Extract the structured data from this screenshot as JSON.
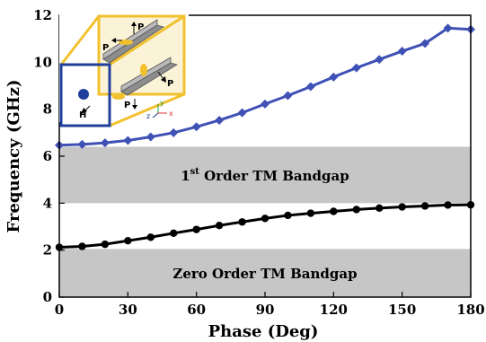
{
  "chart_data": {
    "type": "line",
    "title": "",
    "xlabel": "Phase (Deg)",
    "ylabel": "Frequency (GHz)",
    "xlim": [
      0,
      180
    ],
    "ylim": [
      0,
      12
    ],
    "xticks": [
      "0",
      "30",
      "60",
      "90",
      "120",
      "150",
      "180"
    ],
    "yticks": [
      "0",
      "2",
      "4",
      "6",
      "8",
      "10",
      "12"
    ],
    "grid": false,
    "legend": "none",
    "x": [
      0,
      10,
      20,
      30,
      40,
      50,
      60,
      70,
      80,
      90,
      100,
      110,
      120,
      130,
      140,
      150,
      160,
      170,
      180
    ],
    "series": [
      {
        "color": "#3f51b5",
        "values": [
          6.47,
          6.5,
          6.57,
          6.67,
          6.82,
          7.0,
          7.25,
          7.53,
          7.85,
          8.22,
          8.58,
          8.96,
          9.37,
          9.76,
          10.12,
          10.47,
          10.8,
          11.45,
          11.4
        ]
      },
      {
        "color": "#000000",
        "values": [
          2.12,
          2.16,
          2.25,
          2.4,
          2.55,
          2.72,
          2.88,
          3.05,
          3.2,
          3.35,
          3.48,
          3.57,
          3.65,
          3.73,
          3.79,
          3.84,
          3.88,
          3.92,
          3.93
        ]
      }
    ],
    "bands": [
      {
        "y0": 4.0,
        "y1": 6.4,
        "label_main": "1",
        "label_sup": "st",
        "label_rest": " Order TM Bandgap",
        "color": "#c6c6c6"
      },
      {
        "y0": 0.0,
        "y1": 2.05,
        "label_main": "Zero Order TM Bandgap",
        "label_sup": "",
        "label_rest": "",
        "color": "#c6c6c6"
      }
    ]
  },
  "inset": {
    "label_p": "P",
    "label_h": "H",
    "label_x": "x",
    "label_y": "y",
    "label_z": "z",
    "frame_color": "#f2c12e",
    "port_color": "#1f3f9a"
  }
}
